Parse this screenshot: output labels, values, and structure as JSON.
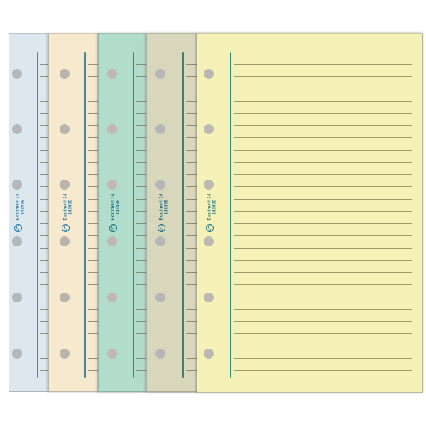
{
  "photo": {
    "background_color": "#ffffff",
    "imprint": {
      "brand": "Exatime® 14",
      "reference": "14243E"
    },
    "holes_per_sheet": 6,
    "sheets": [
      {
        "name": "light-blue",
        "paper_color": "#dce8ee",
        "margin_line_color": "#4a88a8",
        "rule_line_color": "#858a7e",
        "hole_color": "#b4b7bb",
        "ink_color": "#2879a0"
      },
      {
        "name": "cream",
        "paper_color": "#f6e9cd",
        "margin_line_color": "#4486a2",
        "rule_line_color": "#8d8a74",
        "hole_color": "#bab4ae",
        "ink_color": "#2879a0"
      },
      {
        "name": "mint-green",
        "paper_color": "#b2dccb",
        "margin_line_color": "#35839d",
        "rule_line_color": "#7d8a78",
        "hole_color": "#c2b6b6",
        "ink_color": "#1d7988"
      },
      {
        "name": "olive-grey",
        "paper_color": "#d8d7bc",
        "margin_line_color": "#4b7a70",
        "rule_line_color": "#83856b",
        "hole_color": "#b6b6b9",
        "ink_color": "#2a7380"
      },
      {
        "name": "pale-yellow",
        "paper_color": "#f6f1b7",
        "margin_line_color": "#2f8d7b",
        "rule_line_color": "#94925f",
        "hole_color": "#bcb9b2",
        "ink_color": "#2b7e85"
      }
    ]
  }
}
